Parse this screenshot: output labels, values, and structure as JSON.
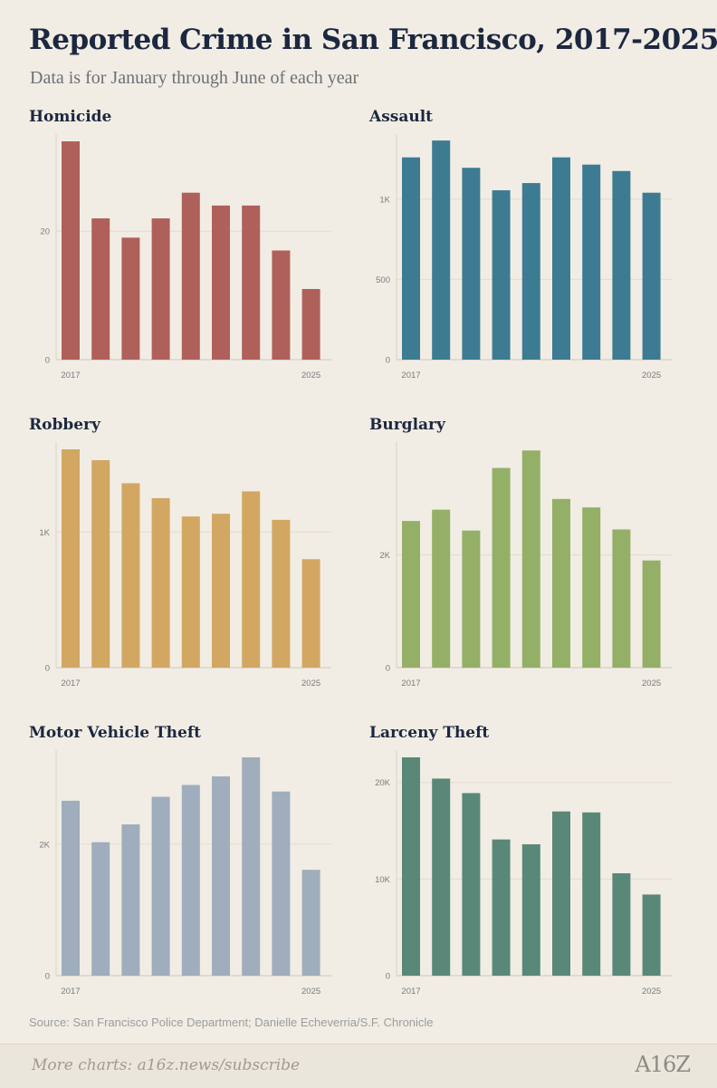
{
  "title": "Reported Crime in San Francisco, 2017-2025",
  "subtitle": "Data is for January through June of each year",
  "source": "Source: San Francisco Police Department; Danielle Echeverria/S.F. Chronicle",
  "footer": {
    "link_text": "More charts: a16z.news/subscribe",
    "logo_text": "A16Z"
  },
  "chart_data": [
    {
      "id": "homicide",
      "type": "bar",
      "title": "Homicide",
      "color": "#b0605a",
      "categories": [
        "2017",
        "2018",
        "2019",
        "2020",
        "2021",
        "2022",
        "2023",
        "2024",
        "2025"
      ],
      "x_tick_labels": [
        "2017",
        "2025"
      ],
      "values": [
        34,
        22,
        19,
        22,
        26,
        24,
        24,
        17,
        11
      ],
      "ylim": [
        0,
        34
      ],
      "yticks": [
        {
          "value": 0,
          "label": "0"
        },
        {
          "value": 20,
          "label": "20"
        }
      ]
    },
    {
      "id": "assault",
      "type": "bar",
      "title": "Assault",
      "color": "#3d7b93",
      "categories": [
        "2017",
        "2018",
        "2019",
        "2020",
        "2021",
        "2022",
        "2023",
        "2024",
        "2025"
      ],
      "x_tick_labels": [
        "2017",
        "2025"
      ],
      "values": [
        1260,
        1365,
        1195,
        1055,
        1100,
        1260,
        1215,
        1175,
        1040
      ],
      "ylim": [
        0,
        1360
      ],
      "yticks": [
        {
          "value": 0,
          "label": "0"
        },
        {
          "value": 500,
          "label": "500"
        },
        {
          "value": 1000,
          "label": "1K"
        }
      ]
    },
    {
      "id": "robbery",
      "type": "bar",
      "title": "Robbery",
      "color": "#d2a762",
      "categories": [
        "2017",
        "2018",
        "2019",
        "2020",
        "2021",
        "2022",
        "2023",
        "2024",
        "2025"
      ],
      "x_tick_labels": [
        "2017",
        "2025"
      ],
      "values": [
        1610,
        1530,
        1360,
        1250,
        1115,
        1135,
        1300,
        1090,
        800
      ],
      "ylim": [
        0,
        1610
      ],
      "yticks": [
        {
          "value": 0,
          "label": "0"
        },
        {
          "value": 1000,
          "label": "1K"
        }
      ]
    },
    {
      "id": "burglary",
      "type": "bar",
      "title": "Burglary",
      "color": "#93b066",
      "categories": [
        "2017",
        "2018",
        "2019",
        "2020",
        "2021",
        "2022",
        "2023",
        "2024",
        "2025"
      ],
      "x_tick_labels": [
        "2017",
        "2025"
      ],
      "values": [
        2600,
        2800,
        2430,
        3540,
        3850,
        2990,
        2840,
        2450,
        1900
      ],
      "ylim": [
        0,
        3870
      ],
      "yticks": [
        {
          "value": 0,
          "label": "0"
        },
        {
          "value": 2000,
          "label": "2K"
        }
      ]
    },
    {
      "id": "motor-vehicle-theft",
      "type": "bar",
      "title": "Motor Vehicle Theft",
      "color": "#9fadbd",
      "categories": [
        "2017",
        "2018",
        "2019",
        "2020",
        "2021",
        "2022",
        "2023",
        "2024",
        "2025"
      ],
      "x_tick_labels": [
        "2017",
        "2025"
      ],
      "values": [
        2660,
        2030,
        2300,
        2720,
        2900,
        3030,
        3320,
        2800,
        1610
      ],
      "ylim": [
        0,
        3320
      ],
      "yticks": [
        {
          "value": 0,
          "label": "0"
        },
        {
          "value": 2000,
          "label": "2K"
        }
      ]
    },
    {
      "id": "larceny-theft",
      "type": "bar",
      "title": "Larceny Theft",
      "color": "#598878",
      "categories": [
        "2017",
        "2018",
        "2019",
        "2020",
        "2021",
        "2022",
        "2023",
        "2024",
        "2025"
      ],
      "x_tick_labels": [
        "2017",
        "2025"
      ],
      "values": [
        22600,
        20400,
        18900,
        14100,
        13600,
        17000,
        16900,
        10600,
        8400
      ],
      "ylim": [
        0,
        22600
      ],
      "yticks": [
        {
          "value": 0,
          "label": "0"
        },
        {
          "value": 10000,
          "label": "10K"
        },
        {
          "value": 20000,
          "label": "20K"
        }
      ]
    }
  ]
}
